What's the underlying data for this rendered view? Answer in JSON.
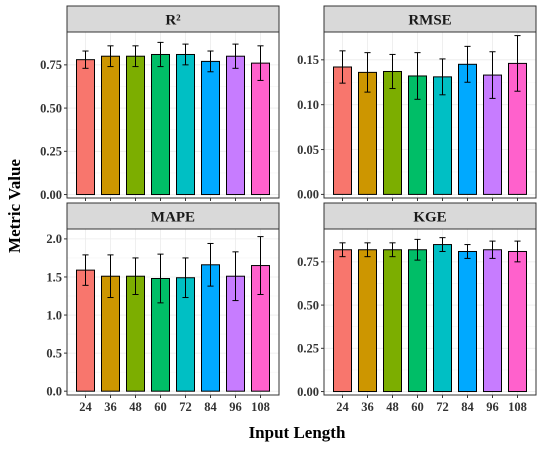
{
  "figure": {
    "ylabel": "Metric Value",
    "xlabel": "Input Length"
  },
  "colors": [
    "#F8766D",
    "#CD9600",
    "#7CAE00",
    "#00BE67",
    "#00BFC4",
    "#00A9FF",
    "#C77CFF",
    "#FF61CC"
  ],
  "chart_data": [
    {
      "type": "bar",
      "title": "R²",
      "categories": [
        "24",
        "36",
        "48",
        "60",
        "72",
        "84",
        "96",
        "108"
      ],
      "values": [
        0.78,
        0.8,
        0.8,
        0.81,
        0.81,
        0.77,
        0.8,
        0.76
      ],
      "errors": [
        0.05,
        0.06,
        0.06,
        0.07,
        0.06,
        0.06,
        0.07,
        0.1
      ],
      "ylim": [
        -0.02,
        0.94
      ],
      "yticks": [
        0.0,
        0.25,
        0.5,
        0.75
      ],
      "ytick_labels": [
        "0.00",
        "0.25",
        "0.50",
        "0.75"
      ],
      "grid": true
    },
    {
      "type": "bar",
      "title": "RMSE",
      "categories": [
        "24",
        "36",
        "48",
        "60",
        "72",
        "84",
        "96",
        "108"
      ],
      "values": [
        0.142,
        0.136,
        0.137,
        0.132,
        0.131,
        0.145,
        0.133,
        0.146
      ],
      "errors": [
        0.018,
        0.022,
        0.019,
        0.026,
        0.02,
        0.02,
        0.026,
        0.031
      ],
      "ylim": [
        -0.004,
        0.181
      ],
      "yticks": [
        0.0,
        0.05,
        0.1,
        0.15
      ],
      "ytick_labels": [
        "0.00",
        "0.05",
        "0.10",
        "0.15"
      ],
      "grid": true
    },
    {
      "type": "bar",
      "title": "MAPE",
      "categories": [
        "24",
        "36",
        "48",
        "60",
        "72",
        "84",
        "96",
        "108"
      ],
      "values": [
        1.59,
        1.51,
        1.51,
        1.48,
        1.49,
        1.66,
        1.51,
        1.65
      ],
      "errors": [
        0.2,
        0.28,
        0.24,
        0.32,
        0.26,
        0.28,
        0.32,
        0.38
      ],
      "ylim": [
        -0.05,
        2.13
      ],
      "yticks": [
        0.0,
        0.5,
        1.0,
        1.5,
        2.0
      ],
      "ytick_labels": [
        "0.0",
        "0.5",
        "1.0",
        "1.5",
        "2.0"
      ],
      "grid": true
    },
    {
      "type": "bar",
      "title": "KGE",
      "categories": [
        "24",
        "36",
        "48",
        "60",
        "72",
        "84",
        "96",
        "108"
      ],
      "values": [
        0.82,
        0.82,
        0.82,
        0.82,
        0.85,
        0.81,
        0.82,
        0.81
      ],
      "errors": [
        0.04,
        0.04,
        0.04,
        0.06,
        0.04,
        0.04,
        0.05,
        0.06
      ],
      "ylim": [
        -0.02,
        0.94
      ],
      "yticks": [
        0.0,
        0.25,
        0.5,
        0.75
      ],
      "ytick_labels": [
        "0.00",
        "0.25",
        "0.50",
        "0.75"
      ],
      "grid": true
    }
  ]
}
